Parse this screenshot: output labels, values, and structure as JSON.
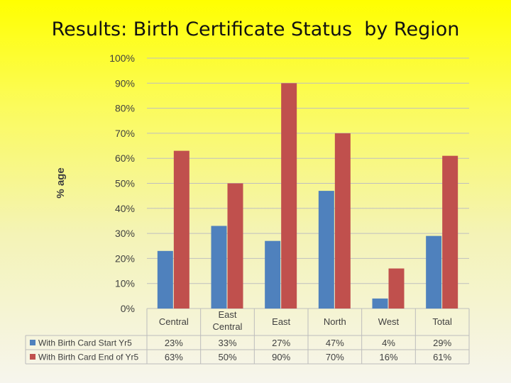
{
  "slide": {
    "title": "Results: Birth Certificate Status  by Region"
  },
  "colors": {
    "series_start": "#4f81bd",
    "series_end": "#c0504d",
    "gridline": "#bfbfbf",
    "text": "#404040"
  },
  "chart_data": {
    "type": "bar",
    "title": "",
    "xlabel": "",
    "ylabel": "% age",
    "ylim": [
      0,
      100
    ],
    "yticks": [
      "0%",
      "10%",
      "20%",
      "30%",
      "40%",
      "50%",
      "60%",
      "70%",
      "80%",
      "90%",
      "100%"
    ],
    "categories": [
      [
        "Central"
      ],
      [
        "East",
        "Central"
      ],
      [
        "East"
      ],
      [
        "North"
      ],
      [
        "West"
      ],
      [
        "Total"
      ]
    ],
    "grid": true,
    "legend": "data-table-below",
    "series": [
      {
        "name": "With Birth Card Start Yr5",
        "values": [
          23,
          33,
          27,
          47,
          4,
          29
        ],
        "labels": [
          "23%",
          "33%",
          "27%",
          "47%",
          "4%",
          "29%"
        ]
      },
      {
        "name": "With Birth Card End of  Yr5",
        "values": [
          63,
          50,
          90,
          70,
          16,
          61
        ],
        "labels": [
          "63%",
          "50%",
          "90%",
          "70%",
          "16%",
          "61%"
        ]
      }
    ]
  }
}
